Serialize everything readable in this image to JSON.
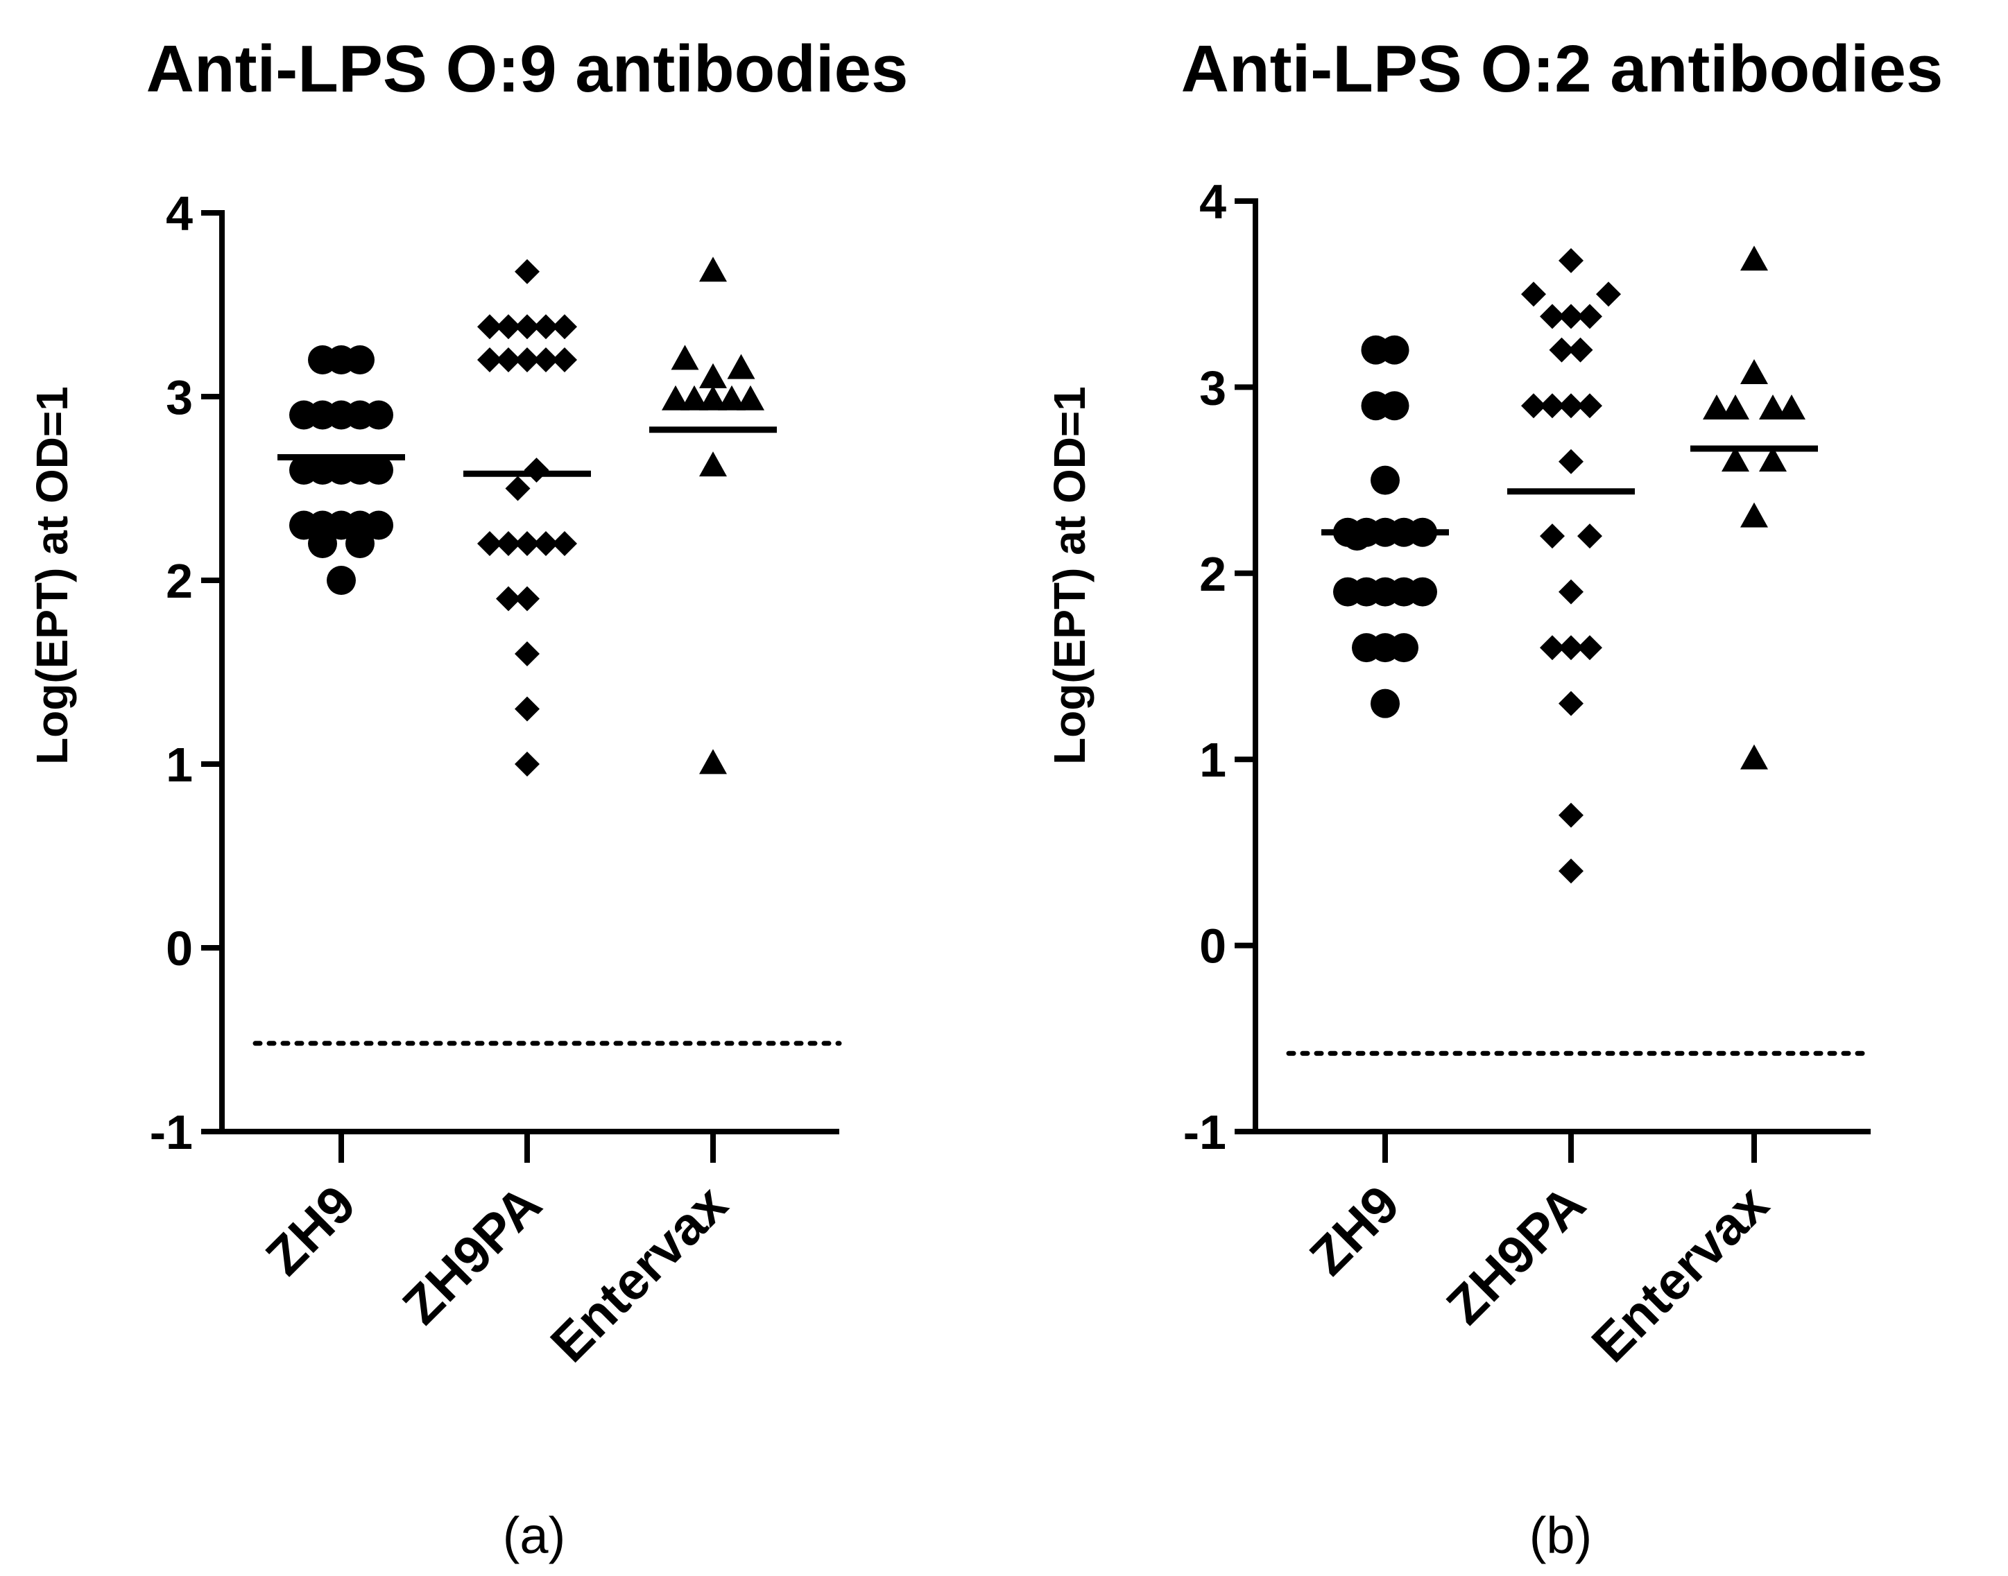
{
  "chart_data": [
    {
      "type": "scatter",
      "title": "Anti-LPS O:9 antibodies",
      "caption": "(a)",
      "ylabel": "Log(EPT) at OD=1",
      "xlabel": "",
      "ylim": [
        -1,
        4
      ],
      "yticks": [
        -1,
        0,
        1,
        2,
        3,
        4
      ],
      "ytick_labels": [
        "-1",
        "0",
        "1",
        "2",
        "3",
        "4"
      ],
      "categories": [
        "ZH9",
        "ZH9PA",
        "Entervax"
      ],
      "reference_line": -0.52,
      "series": [
        {
          "name": "ZH9",
          "marker": "circle",
          "mean": 2.67,
          "points": [
            {
              "dx": -1,
              "y": 3.2
            },
            {
              "dx": 0,
              "y": 3.2
            },
            {
              "dx": 1,
              "y": 3.2
            },
            {
              "dx": -2,
              "y": 2.9
            },
            {
              "dx": -1,
              "y": 2.9
            },
            {
              "dx": 0,
              "y": 2.9
            },
            {
              "dx": 1,
              "y": 2.9
            },
            {
              "dx": 2,
              "y": 2.9
            },
            {
              "dx": -2,
              "y": 2.6
            },
            {
              "dx": -1,
              "y": 2.6
            },
            {
              "dx": 0,
              "y": 2.6
            },
            {
              "dx": 1,
              "y": 2.6
            },
            {
              "dx": 2,
              "y": 2.6
            },
            {
              "dx": -2,
              "y": 2.3
            },
            {
              "dx": -1,
              "y": 2.3
            },
            {
              "dx": 0,
              "y": 2.3
            },
            {
              "dx": 1,
              "y": 2.3
            },
            {
              "dx": 2,
              "y": 2.3
            },
            {
              "dx": -1,
              "y": 2.2
            },
            {
              "dx": 1,
              "y": 2.2
            },
            {
              "dx": 0,
              "y": 2.0
            }
          ]
        },
        {
          "name": "ZH9PA",
          "marker": "diamond",
          "mean": 2.58,
          "points": [
            {
              "dx": 0,
              "y": 3.68
            },
            {
              "dx": -2,
              "y": 3.38
            },
            {
              "dx": -1,
              "y": 3.38
            },
            {
              "dx": 0,
              "y": 3.38
            },
            {
              "dx": 1,
              "y": 3.38
            },
            {
              "dx": 2,
              "y": 3.38
            },
            {
              "dx": -2,
              "y": 3.2
            },
            {
              "dx": -1,
              "y": 3.2
            },
            {
              "dx": 0,
              "y": 3.2
            },
            {
              "dx": 1,
              "y": 3.2
            },
            {
              "dx": 2,
              "y": 3.2
            },
            {
              "dx": 0.5,
              "y": 2.6
            },
            {
              "dx": -0.5,
              "y": 2.5
            },
            {
              "dx": -2,
              "y": 2.2
            },
            {
              "dx": -1,
              "y": 2.2
            },
            {
              "dx": 0,
              "y": 2.2
            },
            {
              "dx": 1,
              "y": 2.2
            },
            {
              "dx": 2,
              "y": 2.2
            },
            {
              "dx": -1,
              "y": 1.9
            },
            {
              "dx": 0,
              "y": 1.9
            },
            {
              "dx": 0,
              "y": 1.6
            },
            {
              "dx": 0,
              "y": 1.3
            },
            {
              "dx": 0,
              "y": 1.0
            }
          ]
        },
        {
          "name": "Entervax",
          "marker": "triangle",
          "mean": 2.82,
          "points": [
            {
              "dx": 0,
              "y": 3.68
            },
            {
              "dx": -1.5,
              "y": 3.2
            },
            {
              "dx": 1.5,
              "y": 3.15
            },
            {
              "dx": 0,
              "y": 3.1
            },
            {
              "dx": -2,
              "y": 2.98
            },
            {
              "dx": -1,
              "y": 2.98
            },
            {
              "dx": 0,
              "y": 2.98
            },
            {
              "dx": 1,
              "y": 2.98
            },
            {
              "dx": 2,
              "y": 2.98
            },
            {
              "dx": 0,
              "y": 2.62
            },
            {
              "dx": 0,
              "y": 1.0
            }
          ]
        }
      ]
    },
    {
      "type": "scatter",
      "title": "Anti-LPS O:2 antibodies",
      "caption": "(b)",
      "ylabel": "Log(EPT) at OD=1",
      "xlabel": "",
      "ylim": [
        -1,
        4
      ],
      "yticks": [
        -1,
        0,
        1,
        2,
        3,
        4
      ],
      "ytick_labels": [
        "-1",
        "0",
        "1",
        "2",
        "3",
        "4"
      ],
      "categories": [
        "ZH9",
        "ZH9PA",
        "Entervax"
      ],
      "reference_line": -0.58,
      "series": [
        {
          "name": "ZH9",
          "marker": "circle",
          "mean": 2.22,
          "points": [
            {
              "dx": -0.5,
              "y": 3.2
            },
            {
              "dx": 0.5,
              "y": 3.2
            },
            {
              "dx": -0.5,
              "y": 2.9
            },
            {
              "dx": 0.5,
              "y": 2.9
            },
            {
              "dx": 0,
              "y": 2.5
            },
            {
              "dx": -2,
              "y": 2.22
            },
            {
              "dx": -1,
              "y": 2.22
            },
            {
              "dx": 0,
              "y": 2.22
            },
            {
              "dx": 1,
              "y": 2.22
            },
            {
              "dx": 2,
              "y": 2.22
            },
            {
              "dx": -1.5,
              "y": 2.2
            },
            {
              "dx": -2,
              "y": 1.9
            },
            {
              "dx": -1,
              "y": 1.9
            },
            {
              "dx": 0,
              "y": 1.9
            },
            {
              "dx": 1,
              "y": 1.9
            },
            {
              "dx": 2,
              "y": 1.9
            },
            {
              "dx": -1,
              "y": 1.6
            },
            {
              "dx": 0,
              "y": 1.6
            },
            {
              "dx": 1,
              "y": 1.6
            },
            {
              "dx": 0,
              "y": 1.3
            }
          ]
        },
        {
          "name": "ZH9PA",
          "marker": "diamond",
          "mean": 2.44,
          "points": [
            {
              "dx": 0,
              "y": 3.68
            },
            {
              "dx": -2,
              "y": 3.5
            },
            {
              "dx": 2,
              "y": 3.5
            },
            {
              "dx": -1,
              "y": 3.38
            },
            {
              "dx": 0,
              "y": 3.38
            },
            {
              "dx": 1,
              "y": 3.38
            },
            {
              "dx": -0.5,
              "y": 3.2
            },
            {
              "dx": 0.5,
              "y": 3.2
            },
            {
              "dx": -2,
              "y": 2.9
            },
            {
              "dx": -1,
              "y": 2.9
            },
            {
              "dx": 0,
              "y": 2.9
            },
            {
              "dx": 1,
              "y": 2.9
            },
            {
              "dx": 0,
              "y": 2.6
            },
            {
              "dx": -1,
              "y": 2.2
            },
            {
              "dx": 1,
              "y": 2.2
            },
            {
              "dx": 0,
              "y": 1.9
            },
            {
              "dx": -1,
              "y": 1.6
            },
            {
              "dx": 0,
              "y": 1.6
            },
            {
              "dx": 1,
              "y": 1.6
            },
            {
              "dx": 0,
              "y": 1.3
            },
            {
              "dx": 0,
              "y": 0.7
            },
            {
              "dx": 0,
              "y": 0.4
            }
          ]
        },
        {
          "name": "Entervax",
          "marker": "triangle",
          "mean": 2.67,
          "points": [
            {
              "dx": 0,
              "y": 3.68
            },
            {
              "dx": 0,
              "y": 3.07
            },
            {
              "dx": -2,
              "y": 2.88
            },
            {
              "dx": -1,
              "y": 2.88
            },
            {
              "dx": 1,
              "y": 2.88
            },
            {
              "dx": 2,
              "y": 2.88
            },
            {
              "dx": -1,
              "y": 2.6
            },
            {
              "dx": 1,
              "y": 2.6
            },
            {
              "dx": 0,
              "y": 2.3
            },
            {
              "dx": 0,
              "y": 1.0
            }
          ]
        }
      ]
    }
  ]
}
